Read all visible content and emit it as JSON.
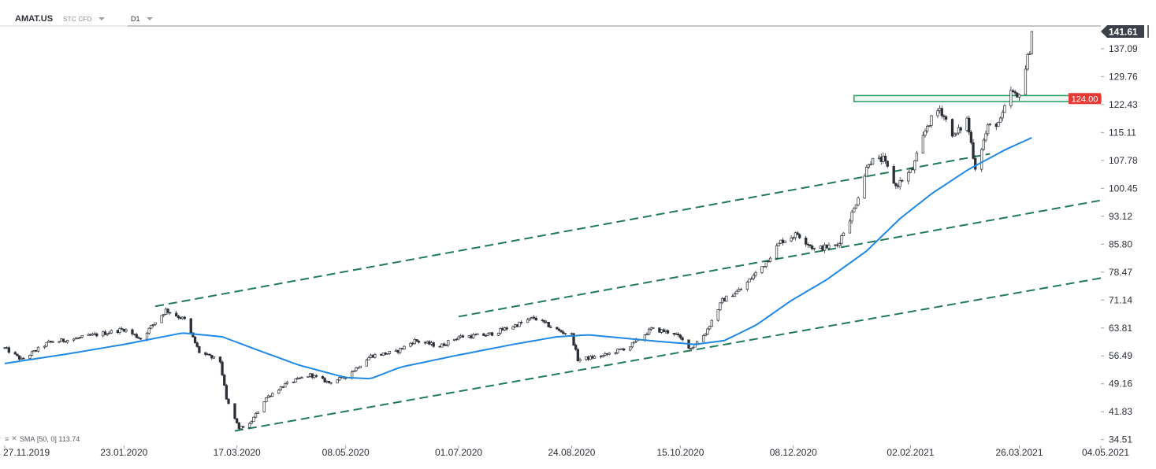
{
  "header": {
    "symbol": "AMAT.US",
    "instrument_type": "STC CFD",
    "timeframe": "D1"
  },
  "indicator": {
    "label": "SMA",
    "params": "[50, 0]",
    "value": "113.74"
  },
  "colors": {
    "candle_up_fill": "#ffffff",
    "candle_down_fill": "#2b2f36",
    "candle_outline": "#2b2f36",
    "sma_line": "#1e88e5",
    "trend_lines": "#1f7a55",
    "resistance_zone": "#2ea36b",
    "resistance_label_bg": "#e53935",
    "price_label_bg": "#3c4048"
  },
  "chart_data": {
    "type": "candlestick",
    "symbol": "AMAT.US",
    "timeframe": "D1",
    "x_ticks": [
      "27.11.2019",
      "23.01.2020",
      "17.03.2020",
      "08.05.2020",
      "01.07.2020",
      "24.08.2020",
      "15.10.2020",
      "08.12.2020",
      "02.02.2021",
      "26.03.2021",
      "04.05.2021"
    ],
    "x_range": [
      "2019-11-27",
      "2021-05-04"
    ],
    "y_ticks": [
      "137.09",
      "129.76",
      "122.43",
      "115.11",
      "107.78",
      "100.45",
      "93.12",
      "85.80",
      "78.47",
      "71.14",
      "63.81",
      "56.49",
      "49.16",
      "41.83",
      "34.51"
    ],
    "y_range": [
      33.0,
      144.5
    ],
    "last_price": "141.61",
    "resistance_level": "124.00",
    "resistance_zone": {
      "from_date": "2021-01-06",
      "to_date": "2021-05-04",
      "low": 123.2,
      "high": 124.8
    },
    "price_path": [
      [
        "2019-11-27",
        58.5
      ],
      [
        "2019-12-05",
        55.5
      ],
      [
        "2019-12-18",
        60.0
      ],
      [
        "2019-12-31",
        61.0
      ],
      [
        "2020-01-14",
        62.5
      ],
      [
        "2020-01-23",
        63.5
      ],
      [
        "2020-01-31",
        61.0
      ],
      [
        "2020-02-12",
        68.5
      ],
      [
        "2020-02-21",
        66.0
      ],
      [
        "2020-02-28",
        57.5
      ],
      [
        "2020-03-09",
        55.0
      ],
      [
        "2020-03-12",
        45.0
      ],
      [
        "2020-03-18",
        37.5
      ],
      [
        "2020-03-23",
        38.5
      ],
      [
        "2020-03-31",
        45.5
      ],
      [
        "2020-04-09",
        49.0
      ],
      [
        "2020-04-21",
        51.5
      ],
      [
        "2020-04-30",
        49.5
      ],
      [
        "2020-05-08",
        51.0
      ],
      [
        "2020-05-20",
        56.5
      ],
      [
        "2020-06-01",
        57.5
      ],
      [
        "2020-06-10",
        60.5
      ],
      [
        "2020-06-22",
        59.0
      ],
      [
        "2020-07-01",
        61.5
      ],
      [
        "2020-07-15",
        62.0
      ],
      [
        "2020-07-28",
        64.5
      ],
      [
        "2020-08-06",
        66.5
      ],
      [
        "2020-08-18",
        63.0
      ],
      [
        "2020-08-24",
        62.0
      ],
      [
        "2020-08-27",
        55.5
      ],
      [
        "2020-09-08",
        56.5
      ],
      [
        "2020-09-21",
        59.0
      ],
      [
        "2020-10-01",
        63.5
      ],
      [
        "2020-10-12",
        62.5
      ],
      [
        "2020-10-20",
        58.5
      ],
      [
        "2020-10-27",
        62.5
      ],
      [
        "2020-11-04",
        71.0
      ],
      [
        "2020-11-13",
        74.0
      ],
      [
        "2020-11-24",
        80.5
      ],
      [
        "2020-12-02",
        86.5
      ],
      [
        "2020-12-10",
        88.5
      ],
      [
        "2020-12-18",
        84.5
      ],
      [
        "2020-12-29",
        85.5
      ],
      [
        "2021-01-06",
        95.0
      ],
      [
        "2021-01-13",
        107.5
      ],
      [
        "2021-01-20",
        108.0
      ],
      [
        "2021-01-26",
        101.0
      ],
      [
        "2021-02-03",
        105.5
      ],
      [
        "2021-02-10",
        117.0
      ],
      [
        "2021-02-16",
        121.5
      ],
      [
        "2021-02-23",
        114.0
      ],
      [
        "2021-03-01",
        118.5
      ],
      [
        "2021-03-05",
        106.0
      ],
      [
        "2021-03-11",
        116.5
      ],
      [
        "2021-03-17",
        118.0
      ],
      [
        "2021-03-22",
        126.0
      ],
      [
        "2021-03-25",
        124.0
      ],
      [
        "2021-03-29",
        132.0
      ],
      [
        "2021-03-31",
        137.0
      ],
      [
        "2021-04-01",
        141.61
      ]
    ],
    "sma_50_path": [
      [
        "2019-11-27",
        54.5
      ],
      [
        "2019-12-27",
        57.0
      ],
      [
        "2020-01-23",
        59.5
      ],
      [
        "2020-02-20",
        62.5
      ],
      [
        "2020-03-10",
        61.5
      ],
      [
        "2020-03-27",
        58.0
      ],
      [
        "2020-04-16",
        54.0
      ],
      [
        "2020-05-08",
        50.8
      ],
      [
        "2020-05-20",
        50.5
      ],
      [
        "2020-06-03",
        53.5
      ],
      [
        "2020-06-29",
        56.5
      ],
      [
        "2020-07-27",
        59.5
      ],
      [
        "2020-08-17",
        61.5
      ],
      [
        "2020-09-01",
        62.0
      ],
      [
        "2020-09-30",
        60.5
      ],
      [
        "2020-10-22",
        59.5
      ],
      [
        "2020-11-05",
        60.5
      ],
      [
        "2020-11-20",
        64.5
      ],
      [
        "2020-12-07",
        71.0
      ],
      [
        "2020-12-24",
        76.5
      ],
      [
        "2021-01-12",
        84.0
      ],
      [
        "2021-01-28",
        92.5
      ],
      [
        "2021-02-12",
        99.0
      ],
      [
        "2021-03-02",
        105.5
      ],
      [
        "2021-03-19",
        110.5
      ],
      [
        "2021-04-01",
        113.74
      ]
    ],
    "trend_lines": [
      {
        "from": [
          "2020-02-07",
          69.5
        ],
        "to": [
          "2021-03-12",
          109.5
        ]
      },
      {
        "from": [
          "2020-03-16",
          36.8
        ],
        "to": [
          "2021-05-04",
          76.9
        ]
      },
      {
        "from": [
          "2020-07-01",
          66.8
        ],
        "to": [
          "2021-05-04",
          97.3
        ]
      }
    ]
  }
}
